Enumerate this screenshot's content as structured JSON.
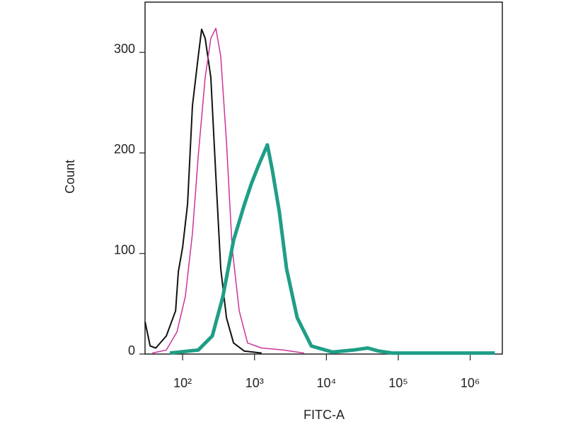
{
  "chart_data": {
    "type": "line",
    "x_label": "FITC-A",
    "y_label": "Count",
    "log_x": true,
    "xlim": [
      30,
      2800000
    ],
    "ylim": [
      0,
      350
    ],
    "xticks": [
      {
        "value": 100,
        "label": "10²"
      },
      {
        "value": 1000,
        "label": "10³"
      },
      {
        "value": 10000,
        "label": "10⁴"
      },
      {
        "value": 100000,
        "label": "10⁵"
      },
      {
        "value": 1000000,
        "label": "10⁶"
      }
    ],
    "yticks": [
      0,
      100,
      200,
      300
    ],
    "series": [
      {
        "color": "#111111",
        "width": 2,
        "x": [
          30.1,
          35.3,
          42.3,
          59.4,
          79.8,
          87.3,
          100,
          117,
          137,
          165,
          184,
          206,
          247,
          290,
          339,
          407,
          511,
          717,
          1260
        ],
        "values": [
          32,
          8,
          6,
          18,
          43,
          82,
          106,
          149,
          247,
          296,
          323,
          314,
          275,
          177,
          85,
          36,
          11,
          3,
          1
        ]
      },
      {
        "color": "#cc3399",
        "width": 1.5,
        "x": [
          37.8,
          59.4,
          83.4,
          109,
          137,
          165,
          206,
          247,
          290,
          339,
          407,
          488,
          612,
          801,
          1260,
          2490,
          4890
        ],
        "values": [
          1,
          4,
          22,
          57,
          120,
          197,
          275,
          314,
          324,
          296,
          211,
          106,
          43,
          11,
          6,
          4,
          1
        ]
      },
      {
        "color": "#1f9e86",
        "width": 5,
        "x": [
          66.5,
          165,
          259,
          363,
          511,
          717,
          900,
          1130,
          1510,
          1770,
          2220,
          2790,
          3930,
          6180,
          12100,
          23900,
          37600,
          52800,
          83100,
          2200000
        ],
        "values": [
          1,
          4,
          18,
          57,
          113,
          148,
          169,
          187,
          208,
          183,
          141,
          85,
          36,
          8,
          2,
          4,
          6,
          3,
          1,
          1
        ]
      }
    ]
  }
}
